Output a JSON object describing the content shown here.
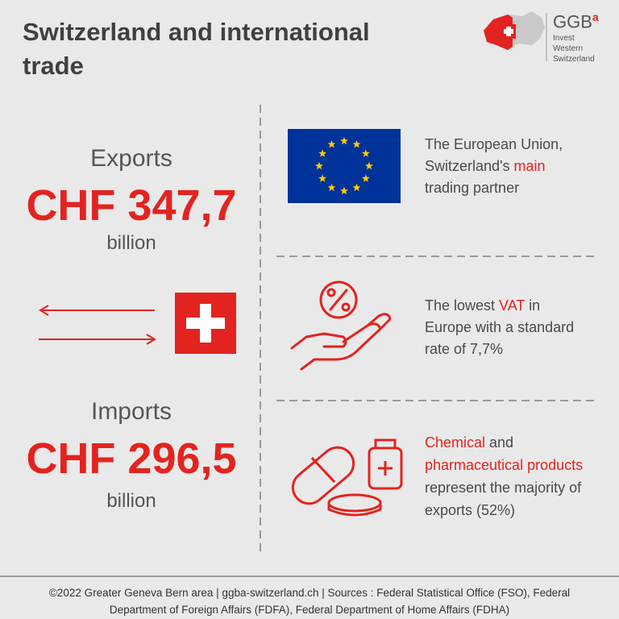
{
  "header": {
    "title": [
      "Switzerland and international",
      "trade"
    ]
  },
  "logo": {
    "name": "GGB",
    "superscript": "a",
    "tagline": [
      "Invest",
      "Western",
      "Switzerland"
    ]
  },
  "exports": {
    "label": "Exports",
    "amount": "CHF 347,7",
    "unit": "billion"
  },
  "imports": {
    "label": "Imports",
    "amount": "CHF 296,5",
    "unit": "billion"
  },
  "facts": [
    {
      "lines": [
        [
          {
            "text": "The European Union,"
          }
        ],
        [
          {
            "text": "Switzerland's "
          },
          {
            "text": "main",
            "highlight": true
          }
        ],
        [
          {
            "text": "trading partner"
          }
        ]
      ]
    },
    {
      "lines": [
        [
          {
            "text": "The lowest "
          },
          {
            "text": "VAT",
            "highlight": true
          },
          {
            "text": " in"
          }
        ],
        [
          {
            "text": "Europe with a standard"
          }
        ],
        [
          {
            "text": "rate of 7,7%"
          }
        ]
      ]
    },
    {
      "lines": [
        [
          {
            "text": "Chemical",
            "highlight": true
          },
          {
            "text": " and"
          }
        ],
        [
          {
            "text": "pharmaceutical products",
            "highlight": true
          }
        ],
        [
          {
            "text": "represent the majority of"
          }
        ],
        [
          {
            "text": "exports (52%)"
          }
        ]
      ]
    }
  ],
  "footer": [
    "©2022 Greater Geneva Bern area | ggba-switzerland.ch | Sources : Federal Statistical Office (FSO), Federal",
    "Department of Foreign Affairs (FDFA), Federal Department of Home Affairs (FDHA)"
  ]
}
